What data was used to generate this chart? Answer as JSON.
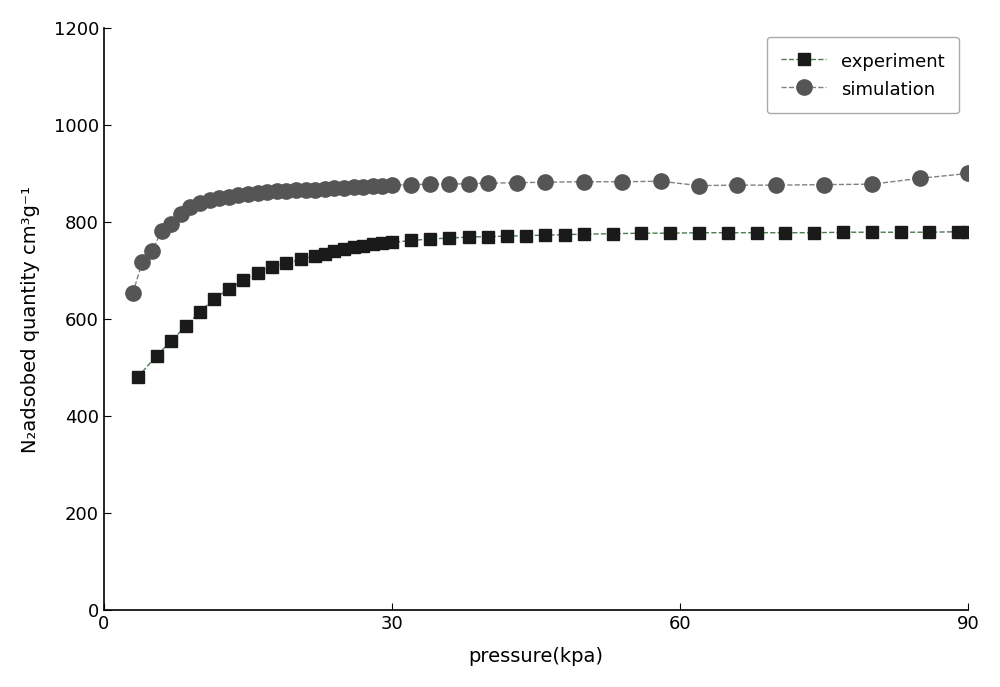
{
  "experiment_x": [
    3.5,
    5.5,
    7.0,
    8.5,
    10.0,
    11.5,
    13.0,
    14.5,
    16.0,
    17.5,
    19.0,
    20.5,
    22.0,
    23.0,
    24.0,
    25.0,
    26.0,
    27.0,
    28.0,
    29.0,
    30.0,
    32.0,
    34.0,
    36.0,
    38.0,
    40.0,
    42.0,
    44.0,
    46.0,
    48.0,
    50.0,
    53.0,
    56.0,
    59.0,
    62.0,
    65.0,
    68.0,
    71.0,
    74.0,
    77.0,
    80.0,
    83.0,
    86.0,
    89.0,
    90.0
  ],
  "experiment_y": [
    480,
    525,
    555,
    585,
    615,
    642,
    662,
    680,
    696,
    707,
    715,
    723,
    730,
    735,
    740,
    745,
    748,
    751,
    754,
    756,
    758,
    762,
    765,
    767,
    769,
    770,
    771,
    772,
    773,
    774,
    775,
    776,
    777,
    777,
    778,
    778,
    778,
    778,
    778,
    779,
    779,
    779,
    779,
    780,
    780
  ],
  "simulation_x": [
    3.0,
    4.0,
    5.0,
    6.0,
    7.0,
    8.0,
    9.0,
    10.0,
    11.0,
    12.0,
    13.0,
    14.0,
    15.0,
    16.0,
    17.0,
    18.0,
    19.0,
    20.0,
    21.0,
    22.0,
    23.0,
    24.0,
    25.0,
    26.0,
    27.0,
    28.0,
    29.0,
    30.0,
    32.0,
    34.0,
    36.0,
    38.0,
    40.0,
    43.0,
    46.0,
    50.0,
    54.0,
    58.0,
    62.0,
    66.0,
    70.0,
    75.0,
    80.0,
    85.0,
    90.0
  ],
  "simulation_y": [
    653,
    718,
    740,
    782,
    796,
    816,
    831,
    840,
    845,
    849,
    852,
    855,
    858,
    860,
    862,
    863,
    864,
    865,
    866,
    867,
    868,
    870,
    871,
    872,
    873,
    874,
    875,
    876,
    877,
    878,
    878,
    879,
    880,
    881,
    882,
    883,
    883,
    884,
    875,
    876,
    876,
    877,
    878,
    890,
    900
  ],
  "xlabel": "pressure(kpa)",
  "ylabel": "N₂adsobed quantity cm³g⁻¹",
  "xlim": [
    0,
    90
  ],
  "ylim": [
    0,
    1200
  ],
  "yticks": [
    0,
    200,
    400,
    600,
    800,
    1000,
    1200
  ],
  "xticks": [
    0,
    30,
    60,
    90
  ],
  "experiment_color": "#4a7c4e",
  "simulation_color": "#808080",
  "line_style": "--",
  "experiment_marker": "s",
  "simulation_marker": "o",
  "marker_size_exp": 9,
  "marker_size_sim": 11,
  "marker_color_exp": "#1a1a1a",
  "marker_color_sim": "#555555",
  "legend_experiment": "experiment",
  "legend_simulation": "simulation",
  "background_color": "#ffffff",
  "fig_width": 10.0,
  "fig_height": 6.87
}
